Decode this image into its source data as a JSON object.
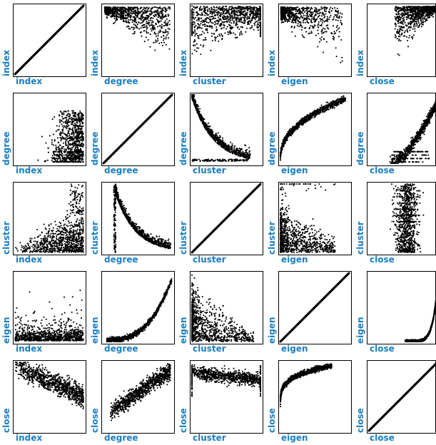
{
  "chart_data": {
    "type": "scatter",
    "layout": "pair-matrix",
    "variables": [
      "index",
      "degree",
      "cluster",
      "eigen",
      "close"
    ],
    "label_color": "#1a7fc1",
    "point_color": "#000000",
    "panels": [
      {
        "row": "index",
        "col": "index",
        "pattern": "identity"
      },
      {
        "row": "index",
        "col": "degree",
        "pattern": "dense top-left cloud, y decreasing as x increases"
      },
      {
        "row": "index",
        "col": "cluster",
        "pattern": "dense along top, spread toward bottom-left, vertical bands at x=0 and x=1"
      },
      {
        "row": "index",
        "col": "eigen",
        "pattern": "dense top-left, sparse to the right"
      },
      {
        "row": "index",
        "col": "close",
        "pattern": "dense top-right cloud, y decreasing as x increases"
      },
      {
        "row": "degree",
        "col": "index",
        "pattern": "dense right-side cloud with horizontal bands at low degree"
      },
      {
        "row": "degree",
        "col": "degree",
        "pattern": "identity"
      },
      {
        "row": "degree",
        "col": "cluster",
        "pattern": "decaying curve from top-left to bottom-right with horizontal band at low degree"
      },
      {
        "row": "degree",
        "col": "eigen",
        "pattern": "rising concave curve from bottom-left"
      },
      {
        "row": "degree",
        "col": "close",
        "pattern": "rising convex cloud toward top-right with horizontal bands at low degree"
      },
      {
        "row": "cluster",
        "col": "index",
        "pattern": "dense bottom-right cloud with horizontal bands near top-right"
      },
      {
        "row": "cluster",
        "col": "degree",
        "pattern": "decaying curve from top-left, vertical band at low degree"
      },
      {
        "row": "cluster",
        "col": "cluster",
        "pattern": "identity"
      },
      {
        "row": "cluster",
        "col": "eigen",
        "pattern": "decaying cloud from top-left"
      },
      {
        "row": "cluster",
        "col": "close",
        "pattern": "dense vertical cloud centred at mid-right with horizontal bands"
      },
      {
        "row": "eigen",
        "col": "index",
        "pattern": "dense bottom cloud, sparse upward spikes toward right"
      },
      {
        "row": "eigen",
        "col": "degree",
        "pattern": "rising convex curve from bottom-left"
      },
      {
        "row": "eigen",
        "col": "cluster",
        "pattern": "decaying cloud from top-left toward bottom"
      },
      {
        "row": "eigen",
        "col": "eigen",
        "pattern": "identity"
      },
      {
        "row": "eigen",
        "col": "close",
        "pattern": "sharp exponential rise at right edge"
      },
      {
        "row": "close",
        "col": "index",
        "pattern": "dense top-right cloud, decreasing as x increases"
      },
      {
        "row": "close",
        "col": "degree",
        "pattern": "rising cloud from bottom-left toward top-right"
      },
      {
        "row": "close",
        "col": "cluster",
        "pattern": "dense band along top, vertical bands at x=0 and x=1"
      },
      {
        "row": "close",
        "col": "eigen",
        "pattern": "rising concave curve, steep near left"
      },
      {
        "row": "close",
        "col": "close",
        "pattern": "identity"
      }
    ]
  }
}
